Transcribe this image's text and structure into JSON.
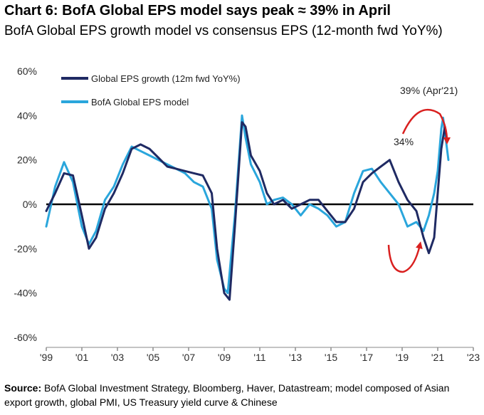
{
  "header": {
    "title": "Chart 6: BofA Global EPS model says peak ≈ 39% in April",
    "subtitle": "BofA Global EPS growth model vs consensus EPS (12-month fwd YoY%)"
  },
  "source": {
    "label": "Source:",
    "text": "BofA Global Investment Strategy, Bloomberg, Haver, Datastream; model composed  of Asian export growth, global PMI, US Treasury yield curve & Chinese"
  },
  "colors": {
    "series1": "#1f2a63",
    "series2": "#2aa6dc",
    "annotation_arrow": "#d9201f",
    "zero_line": "#000000"
  },
  "chart_data": {
    "type": "line",
    "title": "",
    "xlabel": "",
    "ylabel": "",
    "xlim": [
      1999,
      2023
    ],
    "ylim": [
      -60,
      60
    ],
    "x_ticks": [
      1999,
      2001,
      2003,
      2005,
      2007,
      2009,
      2011,
      2013,
      2015,
      2017,
      2019,
      2021,
      2023
    ],
    "x_tick_labels": [
      "'99",
      "'01",
      "'03",
      "'05",
      "'07",
      "'09",
      "'11",
      "'13",
      "'15",
      "'17",
      "'19",
      "'21",
      "'23"
    ],
    "y_ticks": [
      60,
      40,
      20,
      0,
      -20,
      -40,
      -60
    ],
    "y_tick_labels": [
      "60%",
      "40%",
      "20%",
      "0%",
      "-20%",
      "-40%",
      "-60%"
    ],
    "grid": false,
    "legend_position": "top-left",
    "series": [
      {
        "name": "Global EPS growth (12m fwd YoY%)",
        "x": [
          1999.0,
          1999.5,
          2000.0,
          2000.5,
          2001.0,
          2001.4,
          2001.8,
          2002.3,
          2002.8,
          2003.3,
          2003.8,
          2004.3,
          2004.8,
          2005.3,
          2005.8,
          2006.3,
          2006.8,
          2007.3,
          2007.8,
          2008.3,
          2008.6,
          2009.0,
          2009.3,
          2009.6,
          2010.0,
          2010.2,
          2010.5,
          2011.0,
          2011.4,
          2011.8,
          2012.3,
          2012.8,
          2013.3,
          2013.8,
          2014.3,
          2014.8,
          2015.3,
          2015.8,
          2016.3,
          2016.8,
          2017.3,
          2017.8,
          2018.3,
          2018.8,
          2019.3,
          2019.8,
          2020.2,
          2020.5,
          2020.8,
          2021.0,
          2021.2,
          2021.4,
          2021.5
        ],
        "y": [
          -3,
          5,
          14,
          13,
          -5,
          -20,
          -15,
          -2,
          5,
          14,
          25,
          27,
          25,
          21,
          17,
          16,
          15,
          14,
          13,
          5,
          -20,
          -40,
          -43,
          -10,
          37,
          35,
          22,
          15,
          5,
          0,
          2,
          -2,
          0,
          2,
          2,
          -3,
          -8,
          -8,
          -2,
          10,
          14,
          17,
          20,
          10,
          2,
          -3,
          -15,
          -22,
          -15,
          5,
          25,
          35,
          30
        ]
      },
      {
        "name": "BofA Global EPS model",
        "x": [
          1999.0,
          1999.5,
          2000.0,
          2000.5,
          2001.0,
          2001.4,
          2001.8,
          2002.3,
          2002.8,
          2003.3,
          2003.8,
          2004.3,
          2004.8,
          2005.3,
          2005.8,
          2006.3,
          2006.8,
          2007.3,
          2007.8,
          2008.3,
          2008.6,
          2009.0,
          2009.2,
          2009.6,
          2010.0,
          2010.2,
          2010.5,
          2011.0,
          2011.4,
          2011.8,
          2012.3,
          2012.8,
          2013.3,
          2013.8,
          2014.3,
          2014.8,
          2015.3,
          2015.8,
          2016.3,
          2016.8,
          2017.3,
          2017.8,
          2018.3,
          2018.8,
          2019.3,
          2019.8,
          2020.2,
          2020.5,
          2020.8,
          2021.0,
          2021.2,
          2021.3,
          2021.6
        ],
        "y": [
          -10,
          8,
          19,
          10,
          -10,
          -18,
          -12,
          2,
          8,
          18,
          26,
          24,
          22,
          20,
          18,
          16,
          14,
          10,
          8,
          -2,
          -25,
          -38,
          -40,
          -5,
          40,
          30,
          18,
          10,
          0,
          2,
          3,
          0,
          -5,
          0,
          -2,
          -5,
          -10,
          -8,
          5,
          15,
          16,
          10,
          5,
          0,
          -10,
          -8,
          -12,
          -5,
          5,
          15,
          34,
          39,
          20
        ]
      }
    ],
    "annotations": [
      {
        "text": "39% (Apr'21)"
      },
      {
        "text": "34%"
      }
    ]
  }
}
